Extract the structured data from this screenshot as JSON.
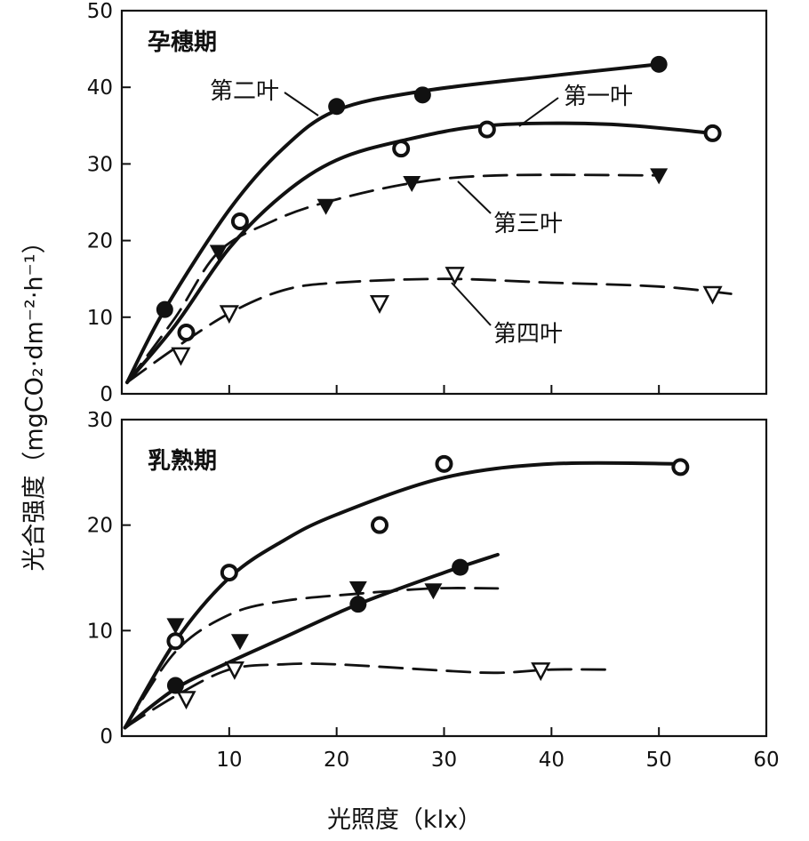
{
  "figure": {
    "ylabel": "光合强度（mgCO₂·dm⁻²·h⁻¹）",
    "xlabel": "光照度（klx）"
  },
  "chart_data": [
    {
      "type": "line",
      "title": "孕穗期",
      "xlim": [
        0,
        60
      ],
      "ylim": [
        0,
        50
      ],
      "x_ticks": [
        "10",
        "20",
        "30",
        "40",
        "50",
        "60"
      ],
      "y_ticks": [
        "0",
        "10",
        "20",
        "30",
        "40",
        "50"
      ],
      "series": [
        {
          "name": "第二叶",
          "style": "solid",
          "marker": "filled-circle",
          "points": [
            [
              4,
              11
            ],
            [
              20,
              37.5
            ],
            [
              28,
              39
            ],
            [
              50,
              43
            ]
          ],
          "curve": [
            [
              0.5,
              1.5
            ],
            [
              4,
              11
            ],
            [
              10,
              24
            ],
            [
              15,
              32
            ],
            [
              20,
              37
            ],
            [
              28,
              39.5
            ],
            [
              40,
              41.5
            ],
            [
              50,
              43
            ]
          ]
        },
        {
          "name": "第一叶",
          "style": "solid",
          "marker": "open-circle",
          "points": [
            [
              6,
              8
            ],
            [
              11,
              22.5
            ],
            [
              26,
              32
            ],
            [
              34,
              34.5
            ],
            [
              55,
              34
            ]
          ],
          "curve": [
            [
              0.5,
              1.5
            ],
            [
              5,
              9
            ],
            [
              10,
              19
            ],
            [
              15,
              26
            ],
            [
              20,
              30.5
            ],
            [
              26,
              33
            ],
            [
              34,
              35
            ],
            [
              45,
              35.2
            ],
            [
              55,
              34
            ]
          ]
        },
        {
          "name": "第三叶",
          "style": "dashed",
          "marker": "filled-triangle",
          "points": [
            [
              9,
              18.5
            ],
            [
              19,
              24.5
            ],
            [
              27,
              27.5
            ],
            [
              50,
              28.5
            ]
          ],
          "curve": [
            [
              0.5,
              1.5
            ],
            [
              5,
              10
            ],
            [
              9,
              18.5
            ],
            [
              14,
              22.5
            ],
            [
              19,
              25
            ],
            [
              27,
              27.5
            ],
            [
              35,
              28.5
            ],
            [
              50,
              28.5
            ]
          ]
        },
        {
          "name": "第四叶",
          "style": "dashed",
          "marker": "open-triangle",
          "points": [
            [
              5.5,
              5
            ],
            [
              10,
              10.5
            ],
            [
              24,
              11.8
            ],
            [
              31,
              15.5
            ],
            [
              55,
              13
            ]
          ],
          "curve": [
            [
              0.5,
              1.5
            ],
            [
              5,
              6
            ],
            [
              10,
              10.5
            ],
            [
              15,
              13.5
            ],
            [
              20,
              14.5
            ],
            [
              30,
              15
            ],
            [
              40,
              14.5
            ],
            [
              50,
              14
            ],
            [
              57,
              13
            ]
          ]
        }
      ]
    },
    {
      "type": "line",
      "title": "乳熟期",
      "xlim": [
        0,
        60
      ],
      "ylim": [
        0,
        30
      ],
      "x_ticks": [
        "10",
        "20",
        "30",
        "40",
        "50",
        "60"
      ],
      "y_ticks": [
        "0",
        "10",
        "20",
        "30"
      ],
      "series": [
        {
          "style": "solid",
          "marker": "open-circle",
          "points": [
            [
              5,
              9
            ],
            [
              10,
              15.5
            ],
            [
              24,
              20
            ],
            [
              30,
              25.8
            ],
            [
              52,
              25.5
            ]
          ],
          "curve": [
            [
              0.3,
              0.8
            ],
            [
              5,
              9
            ],
            [
              10,
              15
            ],
            [
              15,
              18.5
            ],
            [
              20,
              21
            ],
            [
              30,
              24.5
            ],
            [
              40,
              25.8
            ],
            [
              52,
              25.8
            ]
          ]
        },
        {
          "style": "dashed",
          "marker": "filled-triangle",
          "points": [
            [
              5,
              10.5
            ],
            [
              11,
              9
            ],
            [
              22,
              14
            ],
            [
              29,
              13.8
            ]
          ],
          "curve": [
            [
              0.3,
              0.8
            ],
            [
              5,
              8
            ],
            [
              10,
              11.5
            ],
            [
              15,
              12.8
            ],
            [
              22,
              13.5
            ],
            [
              29,
              14
            ],
            [
              35,
              14
            ]
          ]
        },
        {
          "style": "solid",
          "marker": "filled-circle",
          "points": [
            [
              5,
              4.8
            ],
            [
              22,
              12.5
            ],
            [
              31.5,
              16
            ]
          ],
          "curve": [
            [
              0.3,
              0.8
            ],
            [
              5,
              4.5
            ],
            [
              10,
              7
            ],
            [
              15,
              9.3
            ],
            [
              22,
              12.5
            ],
            [
              30,
              15.5
            ],
            [
              35,
              17.2
            ]
          ]
        },
        {
          "style": "dashed",
          "marker": "open-triangle",
          "points": [
            [
              6,
              3.5
            ],
            [
              10.5,
              6.3
            ],
            [
              39,
              6.2
            ]
          ],
          "curve": [
            [
              0.3,
              0.8
            ],
            [
              5,
              3.8
            ],
            [
              10,
              6.3
            ],
            [
              15,
              6.8
            ],
            [
              20,
              6.8
            ],
            [
              30,
              6.2
            ],
            [
              35,
              6.0
            ],
            [
              40,
              6.3
            ],
            [
              45,
              6.3
            ]
          ]
        }
      ]
    }
  ]
}
